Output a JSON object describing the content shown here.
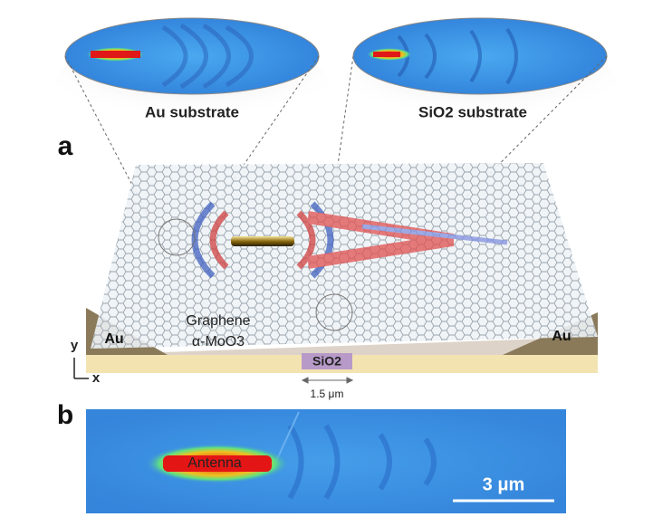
{
  "panel_a": {
    "label": "a",
    "insets": [
      "Au substrate",
      "SiO2 substrate"
    ],
    "layers": {
      "graphene": "Graphene",
      "moo3": "α-MoO3",
      "au_left": "Au",
      "au_right": "Au",
      "sio2": "SiO2"
    },
    "axes": {
      "y": "y",
      "x": "x"
    },
    "gap_width": "1.5 μm"
  },
  "panel_b": {
    "label": "b",
    "antenna": "Antenna",
    "scale_bar": "3 μm"
  }
}
